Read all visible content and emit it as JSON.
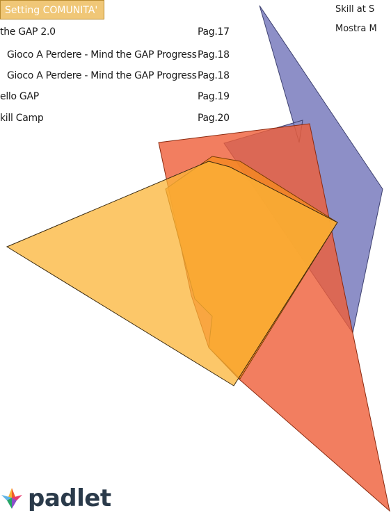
{
  "section": {
    "title": "Setting COMUNITA'"
  },
  "toc": [
    {
      "title": "the GAP 2.0",
      "page": "Pag.17"
    },
    {
      "title": "Gioco A Perdere - Mind the GAP Progress",
      "page": "Pag.18"
    },
    {
      "title": "Gioco A Perdere - Mind the GAP Progress",
      "page": "Pag.18"
    },
    {
      "title": "ello GAP",
      "page": "Pag.19"
    },
    {
      "title": "kill Camp",
      "page": "Pag.20"
    }
  ],
  "side_notes": [
    "Skill at S",
    "Mostra M"
  ],
  "logo": {
    "text": "padlet"
  },
  "colors": {
    "tab": "#f0c777",
    "blue_shape": "#7d7fbf",
    "red_shape": "#ef5e38",
    "orange_shape": "#fbb437"
  }
}
